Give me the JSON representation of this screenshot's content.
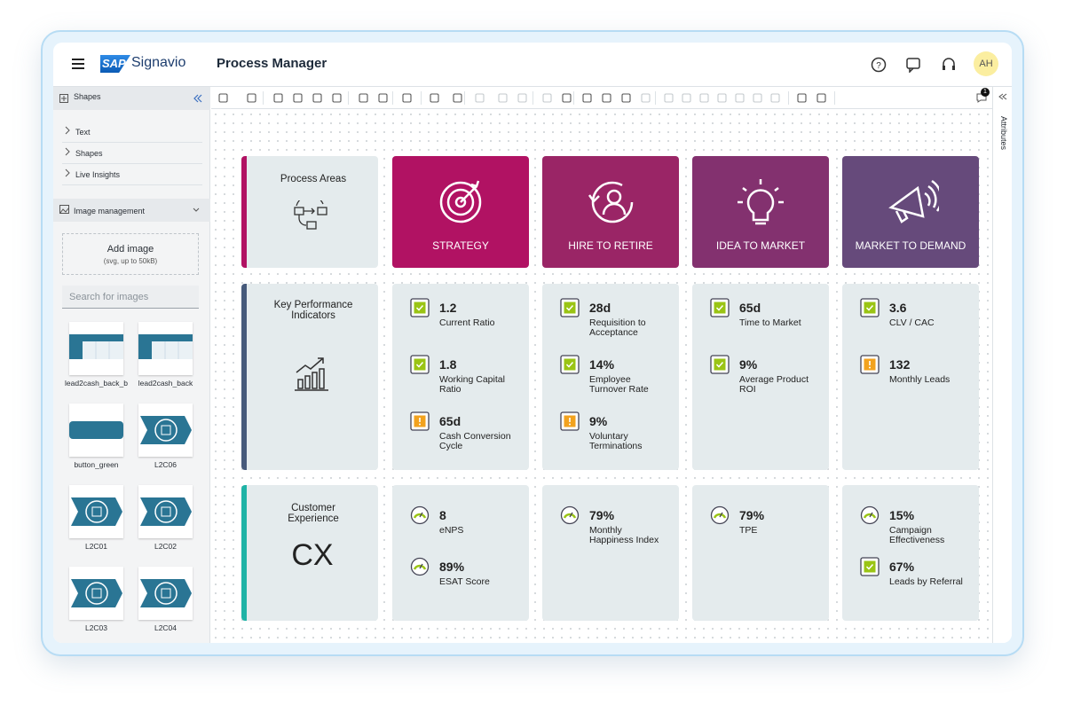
{
  "header": {
    "logo": "SAP",
    "brand": "Signavio",
    "title": "Process Manager",
    "avatar": "AH",
    "notifications": "1"
  },
  "sidebar": {
    "shapes_title": "Shapes",
    "items": [
      "Text",
      "Shapes",
      "Live Insights"
    ],
    "image_title": "Image management",
    "add_image": "Add image",
    "add_image_hint": "(svg, up to 50kB)",
    "search": "Search for images",
    "thumbnails": [
      "lead2cash_back_b",
      "lead2cash_back",
      "button_green",
      "L2C06",
      "L2C01",
      "L2C02",
      "L2C03",
      "L2C04"
    ]
  },
  "right_panel": {
    "label": "Attributes"
  },
  "columns": [
    {
      "title": "STRATEGY",
      "color": "#b11263"
    },
    {
      "title": "HIRE TO RETIRE",
      "color": "#9a2566"
    },
    {
      "title": "IDEA TO MARKET",
      "color": "#83316f"
    },
    {
      "title": "MARKET TO DEMAND",
      "color": "#664a7b"
    }
  ],
  "rows": [
    {
      "label": "Process Areas",
      "accent": "#b11263"
    },
    {
      "label": "Key Performance Indicators",
      "accent": "#465a7b",
      "cells": [
        [
          {
            "value": "1.2",
            "label": "Current Ratio",
            "status": "check"
          },
          {
            "value": "1.8",
            "label": "Working Capital Ratio",
            "status": "check"
          },
          {
            "value": "65d",
            "label": "Cash Conversion Cycle",
            "status": "warning"
          }
        ],
        [
          {
            "value": "28d",
            "label": "Requisition to Acceptance",
            "status": "check"
          },
          {
            "value": "14%",
            "label": "Employee Turnover Rate",
            "status": "check"
          },
          {
            "value": "9%",
            "label": "Voluntary Terminations",
            "status": "warning"
          }
        ],
        [
          {
            "value": "65d",
            "label": "Time to Market",
            "status": "check"
          },
          {
            "value": "9%",
            "label": "Average Product ROI",
            "status": "check"
          }
        ],
        [
          {
            "value": "3.6",
            "label": "CLV / CAC",
            "status": "check"
          },
          {
            "value": "132",
            "label": "Monthly Leads",
            "status": "warning"
          }
        ]
      ]
    },
    {
      "label": "Customer Experience",
      "icon": "CX",
      "accent": "#1fb3a6",
      "cells": [
        [
          {
            "value": "8",
            "label": "eNPS",
            "status": "gauge"
          },
          {
            "value": "89%",
            "label": "ESAT Score",
            "status": "gauge"
          }
        ],
        [
          {
            "value": "79%",
            "label": "Monthly Happiness Index",
            "status": "gauge"
          }
        ],
        [
          {
            "value": "79%",
            "label": "TPE",
            "status": "gauge"
          }
        ],
        [
          {
            "value": "15%",
            "label": "Campaign Effectiveness",
            "status": "gauge"
          },
          {
            "value": "67%",
            "label": "Leads by Referral",
            "status": "check"
          }
        ]
      ]
    }
  ]
}
